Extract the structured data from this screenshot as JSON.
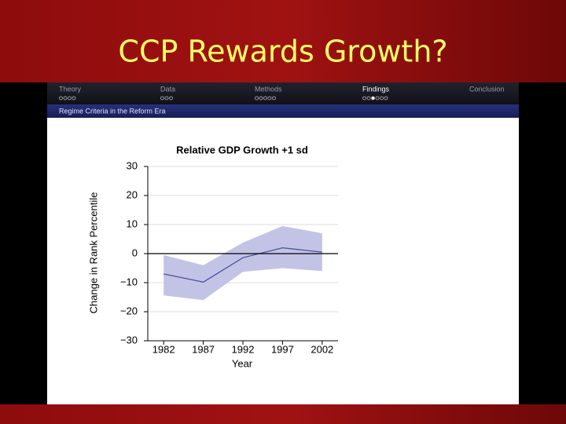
{
  "slide": {
    "title": "CCP Rewards Growth?",
    "nav": [
      {
        "label": "Theory",
        "dots": 4,
        "active": null
      },
      {
        "label": "Data",
        "dots": 3,
        "active": null
      },
      {
        "label": "Methods",
        "dots": 5,
        "active": null
      },
      {
        "label": "Findings",
        "dots": 6,
        "active": 2
      },
      {
        "label": "Conclusion",
        "dots": 0,
        "active": null
      }
    ],
    "section": "Regime Criteria in the Reform Era"
  },
  "chart_data": {
    "type": "line",
    "title": "Relative GDP Growth +1 sd",
    "x_label": "Year",
    "y_label": "Change in Rank Percentile",
    "x": [
      1982,
      1987,
      1992,
      1997,
      2002
    ],
    "series": [
      {
        "color": "#4a4f9e",
        "band_color": "#c3c3e6",
        "values": [
          -7,
          -9.8,
          -1.4,
          2,
          0.5
        ],
        "upper": [
          -0.5,
          -4,
          3.8,
          9.5,
          7
        ],
        "lower": [
          -14.4,
          -16,
          -6.3,
          -5,
          -6
        ]
      }
    ],
    "reference_line": 0,
    "xlim": [
      1980,
      2004
    ],
    "xticks": [
      1982,
      1987,
      1992,
      1997,
      2002
    ],
    "ylim": [
      -30,
      30
    ],
    "yticks": [
      {
        "value": -30,
        "label": "−30"
      },
      {
        "value": -20,
        "label": "−20"
      },
      {
        "value": -10,
        "label": "−10"
      },
      0,
      10,
      20,
      30
    ],
    "grid": true
  }
}
